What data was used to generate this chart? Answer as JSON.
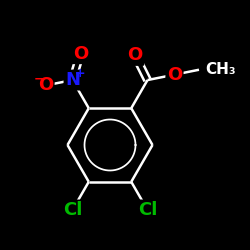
{
  "bg_color": "#000000",
  "bond_color": "#ffffff",
  "bond_width": 1.8,
  "atom_colors": {
    "O": "#ff0000",
    "N": "#1a1aff",
    "Cl": "#00bb00",
    "C": "#ffffff"
  },
  "font_size_atoms": 13,
  "figsize": [
    2.5,
    2.5
  ],
  "dpi": 100
}
